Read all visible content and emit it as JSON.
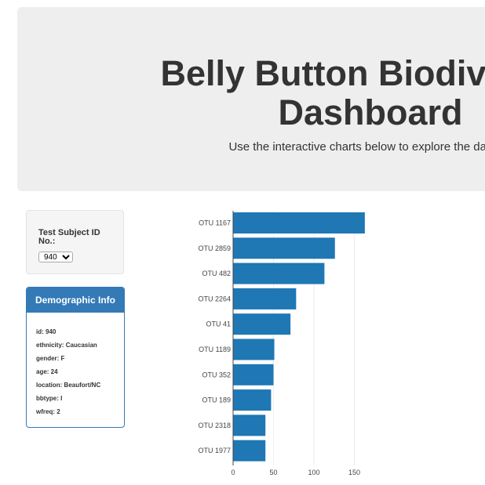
{
  "header": {
    "title_line1": "Belly Button Biodiversity",
    "title_line2": "Dashboard",
    "subtitle": "Use the interactive charts below to explore the dataset"
  },
  "selector": {
    "label": "Test Subject ID No.:",
    "selected_value": "940"
  },
  "demographics": {
    "heading": "Demographic Info",
    "lines": [
      "id: 940",
      "ethnicity: Caucasian",
      "gender: F",
      "age: 24",
      "location: Beaufort/NC",
      "bbtype: I",
      "wfreq: 2"
    ]
  },
  "chart_data": {
    "type": "bar",
    "orientation": "horizontal",
    "categories": [
      "OTU 1167",
      "OTU 2859",
      "OTU 482",
      "OTU 2264",
      "OTU 41",
      "OTU 1189",
      "OTU 352",
      "OTU 189",
      "OTU 2318",
      "OTU 1977"
    ],
    "values": [
      163,
      126,
      113,
      78,
      71,
      51,
      50,
      47,
      40,
      40
    ],
    "xticks": [
      0,
      50,
      100,
      150
    ],
    "xlim": [
      0,
      165
    ],
    "bar_color": "#1f77b4",
    "title": "",
    "xlabel": "",
    "ylabel": ""
  }
}
